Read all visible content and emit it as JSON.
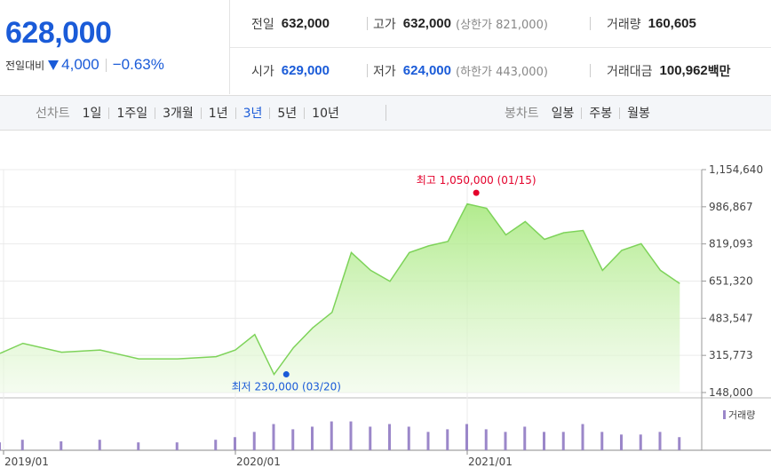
{
  "quote": {
    "price": "628,000",
    "change_label": "전일대비",
    "change_value": "4,000",
    "change_pct": "−0.63%"
  },
  "stats": {
    "prev": {
      "label": "전일",
      "value": "632,000"
    },
    "high": {
      "label": "고가",
      "value": "632,000",
      "sub": "(상한가 821,000)"
    },
    "volume": {
      "label": "거래량",
      "value": "160,605"
    },
    "open": {
      "label": "시가",
      "value": "629,000"
    },
    "low": {
      "label": "저가",
      "value": "624,000",
      "sub": "(하한가 443,000)"
    },
    "amount": {
      "label": "거래대금",
      "value": "100,962",
      "unit": "백만"
    }
  },
  "toolbar": {
    "line_label": "선차트",
    "line_periods": [
      "1일",
      "1주일",
      "3개월",
      "1년",
      "3년",
      "5년",
      "10년"
    ],
    "active_period": "3년",
    "candle_label": "봉차트",
    "candle_periods": [
      "일봉",
      "주봉",
      "월봉"
    ]
  },
  "colors": {
    "accent": "#1a5bd8",
    "up": "#e4002b",
    "line": "#7ed35a",
    "volume": "#9b87c9"
  },
  "chart_data": {
    "type": "area",
    "x_label_ticks": [
      "2019/01",
      "2020/01",
      "2021/01"
    ],
    "y_ticks": [
      1154640,
      986867,
      819093,
      651320,
      483547,
      315773,
      148000
    ],
    "ylim": [
      148000,
      1154640
    ],
    "annotations": {
      "high": {
        "text": "최고 1,050,000 (01/15)",
        "value": 1050000,
        "date": "2021/01/15"
      },
      "low": {
        "text": "최저 230,000 (03/20)",
        "value": 230000,
        "date": "2020/03/20"
      }
    },
    "volume_legend": "거래량",
    "x_dates": [
      "2018-12",
      "2019-02",
      "2019-04",
      "2019-06",
      "2019-08",
      "2019-10",
      "2019-12",
      "2020-01",
      "2020-02",
      "2020-03",
      "2020-04",
      "2020-05",
      "2020-06",
      "2020-07",
      "2020-08",
      "2020-09",
      "2020-10",
      "2020-11",
      "2020-12",
      "2021-01",
      "2021-02",
      "2021-03",
      "2021-04",
      "2021-05",
      "2021-06",
      "2021-07",
      "2021-08",
      "2021-09",
      "2021-10",
      "2021-11",
      "2021-12"
    ],
    "values": [
      325000,
      370000,
      330000,
      340000,
      300000,
      300000,
      310000,
      340000,
      410000,
      230000,
      350000,
      440000,
      510000,
      780000,
      700000,
      650000,
      780000,
      810000,
      830000,
      1000000,
      980000,
      860000,
      920000,
      840000,
      870000,
      880000,
      700000,
      790000,
      820000,
      700000,
      640000
    ],
    "volume_relative": [
      0.15,
      0.2,
      0.17,
      0.2,
      0.15,
      0.15,
      0.2,
      0.25,
      0.35,
      0.5,
      0.4,
      0.45,
      0.55,
      0.55,
      0.45,
      0.5,
      0.45,
      0.35,
      0.4,
      0.5,
      0.4,
      0.35,
      0.45,
      0.35,
      0.35,
      0.5,
      0.35,
      0.3,
      0.3,
      0.35,
      0.25
    ]
  }
}
